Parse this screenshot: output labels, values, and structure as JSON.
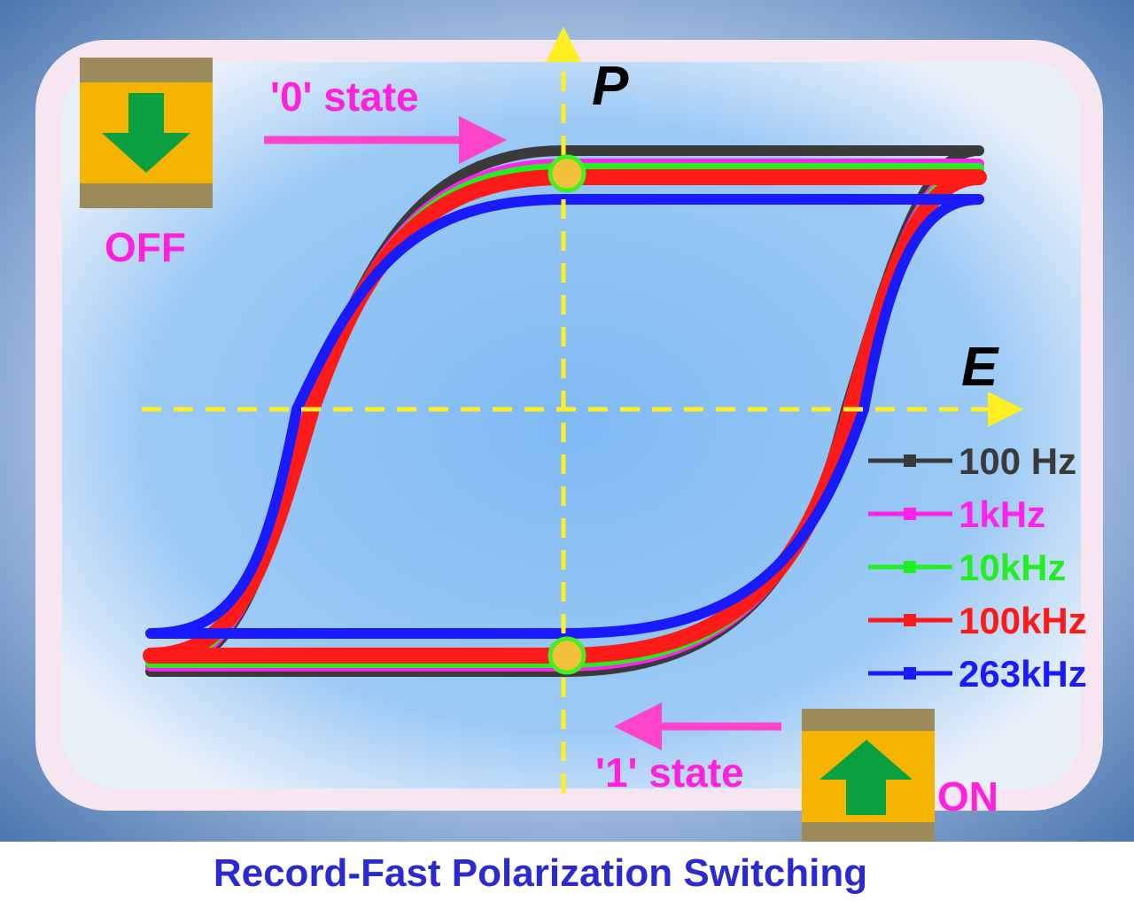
{
  "axes": {
    "y_label": "P",
    "x_label": "E"
  },
  "annotations": {
    "state_0": "'0' state",
    "state_1": "'1' state",
    "off": "OFF",
    "on": "ON"
  },
  "legend": [
    {
      "label": "100 Hz",
      "color": "#3a3a3a"
    },
    {
      "label": "1kHz",
      "color": "#ff22ee"
    },
    {
      "label": "10kHz",
      "color": "#22ee22"
    },
    {
      "label": "100kHz",
      "color": "#ff1a1a"
    },
    {
      "label": "263kHz",
      "color": "#1a1aff"
    }
  ],
  "caption": "Record-Fast Polarization Switching"
}
